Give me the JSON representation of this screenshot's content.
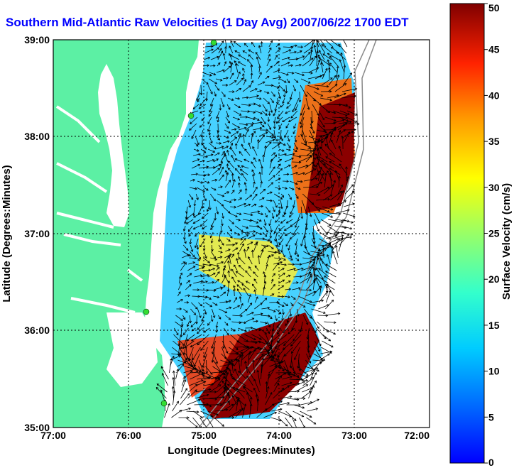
{
  "title": "Southern Mid-Atlantic Raw Velocities (1 Day Avg) 2007/06/22 1700 EDT",
  "map": {
    "xlabel": "Longitude (Degrees:Minutes)",
    "ylabel": "Latitude (Degrees:Minutes)",
    "x_ticks": [
      "77:00",
      "76:00",
      "75:00",
      "74:00",
      "73:00",
      "72:00"
    ],
    "y_ticks": [
      "39:00",
      "38:00",
      "37:00",
      "36:00",
      "35:00"
    ],
    "grid": "dotted",
    "land_color": "#5cf0a4",
    "water_color": "#ffffff",
    "station_color": "#33dd33"
  },
  "colorbar": {
    "label": "Surface Velocity (cm/s)",
    "ticks": [
      "50",
      "45",
      "40",
      "35",
      "30",
      "25",
      "20",
      "15",
      "10",
      "5",
      "0"
    ],
    "min": 0,
    "max": 50,
    "colormap": "jet"
  }
}
